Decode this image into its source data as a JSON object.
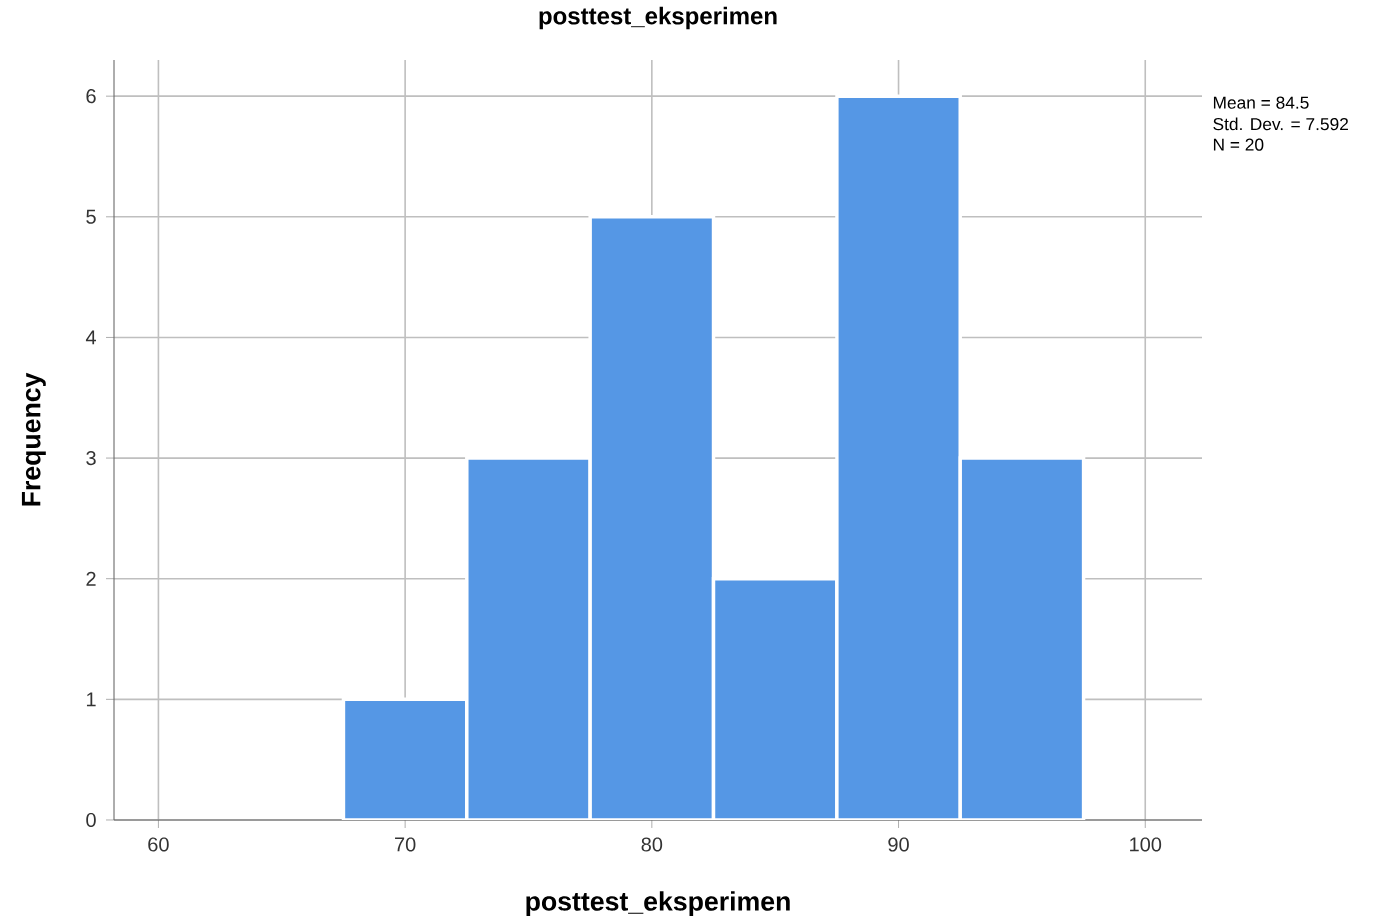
{
  "chart_data": {
    "type": "histogram",
    "title": "posttest_eksperimen",
    "xlabel": "posttest_eksperimen",
    "ylabel": "Frequency",
    "bins": [
      67.5,
      72.5,
      77.5,
      82.5,
      87.5,
      92.5,
      97.5
    ],
    "values": [
      1,
      3,
      5,
      2,
      6,
      3
    ],
    "color": "#5597e5",
    "xlim": [
      58.2,
      102.3
    ],
    "ylim": [
      0,
      6.3
    ],
    "xticks": [
      60,
      70,
      80,
      90,
      100
    ],
    "yticks": [
      0,
      1,
      2,
      3,
      4,
      5,
      6
    ],
    "grid": true,
    "annotations": [
      "Mean = 84.5",
      "Std. Dev. = 7.592",
      "N = 20"
    ]
  }
}
